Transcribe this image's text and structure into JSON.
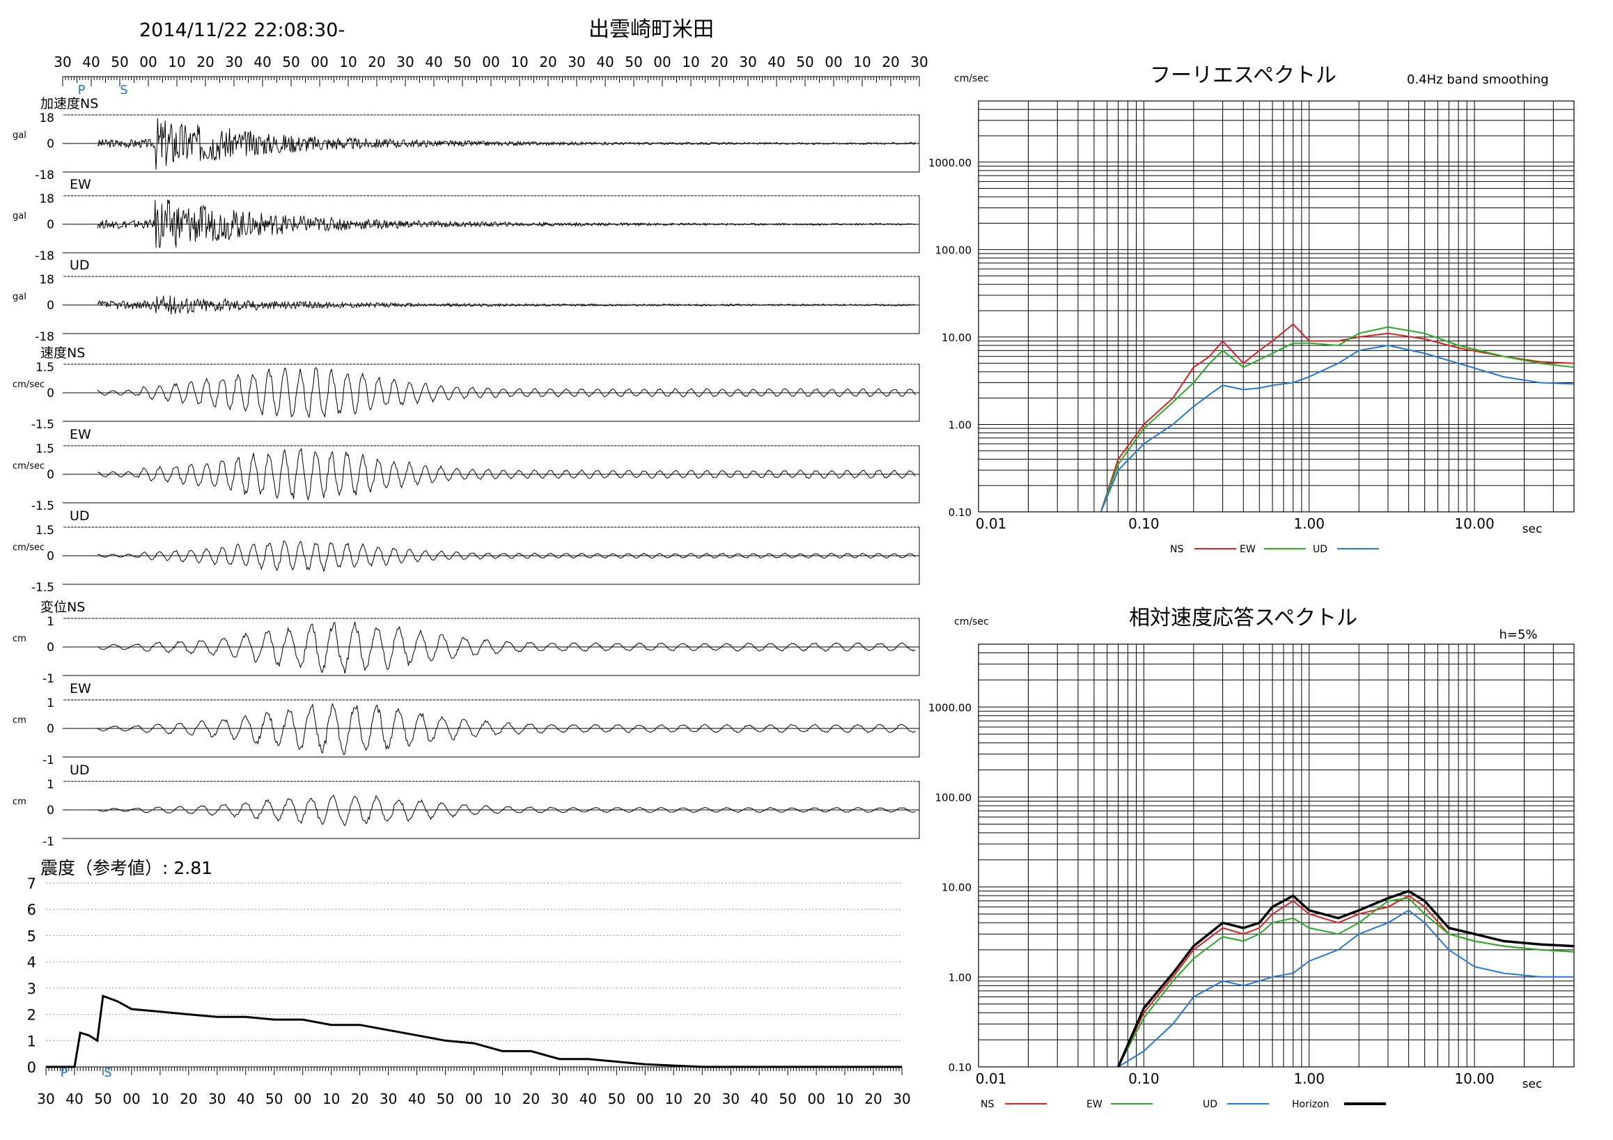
{
  "header": {
    "datetime": "2014/11/22 22:08:30-",
    "station": "出雲崎町米田",
    "time_ticks": [
      "30",
      "40",
      "50",
      "00",
      "10",
      "20",
      "30",
      "40",
      "50",
      "00",
      "10",
      "20",
      "30",
      "40",
      "50",
      "00",
      "10",
      "20",
      "30",
      "40",
      "50",
      "00",
      "10",
      "20",
      "30",
      "40",
      "50",
      "00",
      "10",
      "20",
      "30"
    ],
    "phase_p": "P",
    "phase_s": "S"
  },
  "waveforms": [
    {
      "label": "加速度NS",
      "unit": "gal",
      "max": "18",
      "zero": "0",
      "min": "-18"
    },
    {
      "label": "EW",
      "unit": "gal",
      "max": "18",
      "zero": "0",
      "min": "-18"
    },
    {
      "label": "UD",
      "unit": "gal",
      "max": "18",
      "zero": "0",
      "min": "-18"
    },
    {
      "label": "速度NS",
      "unit": "cm/sec",
      "max": "1.5",
      "zero": "0",
      "min": "-1.5"
    },
    {
      "label": "EW",
      "unit": "cm/sec",
      "max": "1.5",
      "zero": "0",
      "min": "-1.5"
    },
    {
      "label": "UD",
      "unit": "cm/sec",
      "max": "1.5",
      "zero": "0",
      "min": "-1.5"
    },
    {
      "label": "変位NS",
      "unit": "cm",
      "max": "1",
      "zero": "0",
      "min": "-1"
    },
    {
      "label": "EW",
      "unit": "cm",
      "max": "1",
      "zero": "0",
      "min": "-1"
    },
    {
      "label": "UD",
      "unit": "cm",
      "max": "1",
      "zero": "0",
      "min": "-1"
    }
  ],
  "intensity": {
    "title": "震度（参考値）: 2.81",
    "y_ticks": [
      "0",
      "1",
      "2",
      "3",
      "4",
      "5",
      "6",
      "7"
    ],
    "x_ticks": [
      "30",
      "40",
      "50",
      "00",
      "10",
      "20",
      "30",
      "40",
      "50",
      "00",
      "10",
      "20",
      "30",
      "40",
      "50",
      "00",
      "10",
      "20",
      "30",
      "40",
      "50",
      "00",
      "10",
      "20",
      "30",
      "40",
      "50",
      "00",
      "10",
      "20",
      "30"
    ],
    "phase_p": "P",
    "phase_s": "S"
  },
  "fourier": {
    "title": "フーリエスペクトル",
    "subtitle": "0.4Hz band smoothing",
    "unit": "cm/sec",
    "xunit": "sec",
    "y_ticks": [
      "1000.00",
      "100.00",
      "10.00",
      "1.00",
      "0.10"
    ],
    "x_ticks": [
      "0.01",
      "0.10",
      "1.00",
      "10.00"
    ],
    "legend": [
      {
        "name": "NS",
        "color": "#e02020"
      },
      {
        "name": "EW",
        "color": "#20b020"
      },
      {
        "name": "UD",
        "color": "#1e78e0"
      }
    ]
  },
  "response": {
    "title": "相対速度応答スペクトル",
    "subtitle": "h=5%",
    "unit": "cm/sec",
    "xunit": "sec",
    "y_ticks": [
      "1000.00",
      "100.00",
      "10.00",
      "1.00",
      "0.10"
    ],
    "x_ticks": [
      "0.01",
      "0.10",
      "1.00",
      "10.00"
    ],
    "legend": [
      {
        "name": "NS",
        "color": "#e02020"
      },
      {
        "name": "EW",
        "color": "#20b020"
      },
      {
        "name": "UD",
        "color": "#1e78e0"
      },
      {
        "name": "Horizon",
        "color": "#000000"
      }
    ]
  },
  "chart_data": [
    {
      "type": "line",
      "title": "震度（参考値）: 2.81",
      "ylim": [
        0,
        7
      ],
      "x": [
        0,
        5,
        10,
        12,
        15,
        18,
        20,
        25,
        30,
        40,
        50,
        60,
        70,
        80,
        90,
        100,
        110,
        120,
        130,
        140,
        150,
        160,
        170,
        180,
        190,
        200,
        210,
        220,
        230,
        240,
        250,
        260,
        270,
        280,
        290,
        300
      ],
      "values": [
        0,
        0,
        0,
        1.3,
        1.2,
        1.0,
        2.7,
        2.5,
        2.2,
        2.1,
        2.0,
        1.9,
        1.9,
        1.8,
        1.8,
        1.6,
        1.6,
        1.4,
        1.2,
        1.0,
        0.9,
        0.6,
        0.6,
        0.3,
        0.3,
        0.2,
        0.1,
        0.05,
        0,
        0,
        0,
        0,
        0,
        0,
        0,
        0
      ]
    },
    {
      "type": "line",
      "title": "フーリエスペクトル",
      "xlabel": "sec",
      "ylabel": "cm/sec",
      "xscale": "log",
      "yscale": "log",
      "x": [
        0.055,
        0.07,
        0.1,
        0.15,
        0.2,
        0.25,
        0.3,
        0.4,
        0.5,
        0.6,
        0.8,
        1.0,
        1.5,
        2.0,
        3.0,
        5.0,
        8.0,
        15.0,
        25.0,
        40.0
      ],
      "series": [
        {
          "name": "NS",
          "values": [
            0.1,
            0.4,
            1.0,
            2.0,
            4.5,
            6.0,
            9.0,
            5.0,
            7.0,
            9.0,
            14.0,
            9.0,
            9.0,
            10.0,
            11.0,
            9.5,
            7.5,
            6.0,
            5.2,
            5.0
          ]
        },
        {
          "name": "EW",
          "values": [
            0.1,
            0.35,
            0.9,
            1.8,
            3.0,
            5.0,
            7.0,
            4.5,
            5.5,
            6.5,
            8.5,
            8.5,
            8.0,
            11.0,
            13.0,
            11.0,
            8.0,
            6.0,
            5.0,
            4.5
          ]
        },
        {
          "name": "UD",
          "values": [
            0.1,
            0.3,
            0.6,
            1.0,
            1.6,
            2.2,
            2.8,
            2.5,
            2.6,
            2.8,
            3.0,
            3.5,
            5.0,
            7.0,
            8.0,
            6.5,
            5.0,
            3.5,
            3.0,
            2.9
          ]
        }
      ]
    },
    {
      "type": "line",
      "title": "相対速度応答スペクトル",
      "xlabel": "sec",
      "ylabel": "cm/sec",
      "xscale": "log",
      "yscale": "log",
      "x": [
        0.07,
        0.1,
        0.15,
        0.2,
        0.3,
        0.4,
        0.5,
        0.6,
        0.8,
        1.0,
        1.5,
        2.0,
        3.0,
        4.0,
        5.0,
        7.0,
        10.0,
        15.0,
        25.0,
        40.0
      ],
      "series": [
        {
          "name": "NS",
          "values": [
            0.1,
            0.4,
            1.0,
            2.0,
            3.5,
            3.0,
            3.5,
            5.0,
            7.0,
            5.0,
            4.0,
            5.0,
            6.0,
            8.0,
            6.0,
            3.0,
            2.5,
            2.2,
            2.0,
            1.9
          ]
        },
        {
          "name": "EW",
          "values": [
            0.1,
            0.35,
            0.9,
            1.6,
            2.8,
            2.5,
            3.0,
            4.0,
            4.5,
            3.5,
            3.0,
            4.0,
            7.0,
            7.5,
            5.0,
            3.0,
            2.5,
            2.2,
            2.0,
            1.9
          ]
        },
        {
          "name": "UD",
          "values": [
            0.1,
            0.15,
            0.3,
            0.6,
            0.9,
            0.8,
            0.9,
            1.0,
            1.1,
            1.5,
            2.0,
            3.0,
            4.0,
            5.5,
            4.0,
            2.0,
            1.3,
            1.1,
            1.0,
            1.0
          ]
        },
        {
          "name": "Horizon",
          "values": [
            0.1,
            0.45,
            1.1,
            2.2,
            4.0,
            3.5,
            4.0,
            6.0,
            8.0,
            5.5,
            4.5,
            5.5,
            7.5,
            9.0,
            7.0,
            3.5,
            3.0,
            2.5,
            2.3,
            2.2
          ]
        }
      ]
    }
  ]
}
